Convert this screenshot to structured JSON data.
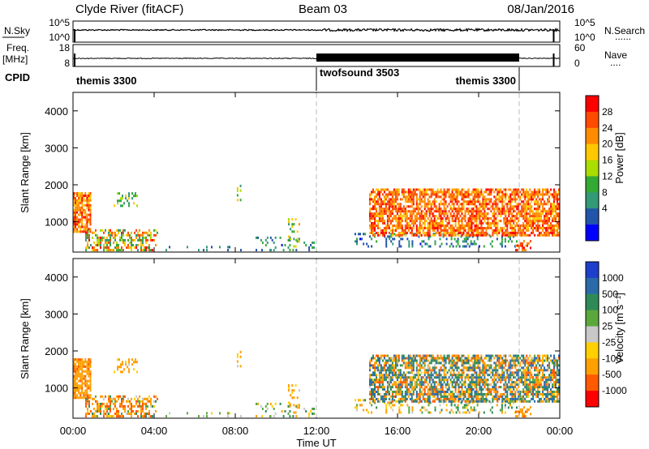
{
  "chart_data": {
    "type": "heatmap",
    "header": {
      "title_left": "Clyde River (fitACF)",
      "title_center": "Beam 03",
      "title_right": "08/Jan/2016"
    },
    "xlabel": "Time UT",
    "x_ticks": [
      "00:00",
      "04:00",
      "08:00",
      "12:00",
      "16:00",
      "20:00",
      "00:00"
    ],
    "xlim_hours": [
      0,
      24
    ],
    "dashed_markers_hours": [
      12,
      22
    ],
    "noise_panel": {
      "left_label": "N.Sky",
      "left_ticks": [
        "10^5",
        "10^0"
      ],
      "right_ticks": [
        "10^5",
        "10^0"
      ],
      "right_label": "N.Search",
      "legend_marker": "......"
    },
    "freq_panel": {
      "left_label_line1": "Freq.",
      "left_label_line2": "[MHz]",
      "left_ticks": [
        "18",
        "8"
      ],
      "right_ticks": [
        "60",
        "0"
      ],
      "right_label": "Nave",
      "legend_marker": "....",
      "freq_level_mhz": 10
    },
    "cpid": {
      "label": "CPID",
      "segments": [
        {
          "start": 0,
          "end": 12,
          "name": "themis 3300",
          "align": "start"
        },
        {
          "start": 12,
          "end": 22,
          "name": "twofsound 3503",
          "align": "start"
        },
        {
          "start": 22,
          "end": 24,
          "name": "themis 3300",
          "align": "end"
        }
      ]
    },
    "panels": [
      {
        "name": "power",
        "ylabel": "Slant Range [km]",
        "ylim": [
          180,
          4500
        ],
        "y_ticks": [
          1000,
          2000,
          3000,
          4000
        ],
        "colorbar": {
          "label": "Power [dB]",
          "labels": [
            "28",
            "24",
            "20",
            "16",
            "12",
            "8",
            "4"
          ],
          "colors": [
            "#ff0000",
            "#ff4a00",
            "#ff8c00",
            "#ffc800",
            "#aadd00",
            "#33aa33",
            "#339977",
            "#2255aa",
            "#0000ff"
          ]
        }
      },
      {
        "name": "velocity",
        "ylabel": "Slant Range [km]",
        "ylim": [
          180,
          4500
        ],
        "y_ticks": [
          1000,
          2000,
          3000,
          4000
        ],
        "colorbar": {
          "label": "Velocity [m s⁻¹]",
          "labels": [
            "1000",
            "500",
            "100",
            "25",
            "-25",
            "-100",
            "-500",
            "-1000"
          ],
          "colors": [
            "#1e3fcc",
            "#2a6aa8",
            "#2e8b57",
            "#5aa83c",
            "#c8c8c8",
            "#ffd000",
            "#ff9f00",
            "#ff5a00",
            "#ff0000"
          ]
        }
      }
    ],
    "scatter_regions": [
      {
        "t0": 0.0,
        "t1": 0.9,
        "r0": 700,
        "r1": 1800,
        "p": [
          18,
          30
        ],
        "v": [
          -600,
          -100
        ],
        "d": 0.85
      },
      {
        "t0": 0.6,
        "t1": 4.2,
        "r0": 200,
        "r1": 800,
        "p": [
          8,
          30
        ],
        "v": [
          -800,
          200
        ],
        "d": 0.5
      },
      {
        "t0": 2.0,
        "t1": 3.2,
        "r0": 1400,
        "r1": 1800,
        "p": [
          8,
          20
        ],
        "v": [
          -300,
          0
        ],
        "d": 0.35
      },
      {
        "t0": 9.0,
        "t1": 12.0,
        "r0": 200,
        "r1": 600,
        "p": [
          4,
          14
        ],
        "v": [
          -200,
          200
        ],
        "d": 0.2
      },
      {
        "t0": 13.8,
        "t1": 22.0,
        "r0": 300,
        "r1": 700,
        "p": [
          4,
          14
        ],
        "v": [
          -200,
          200
        ],
        "d": 0.25
      },
      {
        "t0": 14.6,
        "t1": 24.0,
        "r0": 600,
        "r1": 1900,
        "p": [
          20,
          30
        ],
        "v": [
          -700,
          900
        ],
        "d": 0.7
      },
      {
        "t0": 4.0,
        "t1": 10.0,
        "r0": 200,
        "r1": 360,
        "p": [
          4,
          10
        ],
        "v": [
          -100,
          100
        ],
        "d": 0.15
      },
      {
        "t0": 8.0,
        "t1": 8.3,
        "r0": 1300,
        "r1": 2000,
        "p": [
          10,
          20
        ],
        "v": [
          -300,
          0
        ],
        "d": 0.25
      },
      {
        "t0": 10.6,
        "t1": 11.2,
        "r0": 300,
        "r1": 1100,
        "p": [
          8,
          22
        ],
        "v": [
          -400,
          0
        ],
        "d": 0.25
      },
      {
        "t0": 21.8,
        "t1": 22.6,
        "r0": 200,
        "r1": 500,
        "p": [
          20,
          30
        ],
        "v": [
          -600,
          -200
        ],
        "d": 0.45
      }
    ]
  }
}
